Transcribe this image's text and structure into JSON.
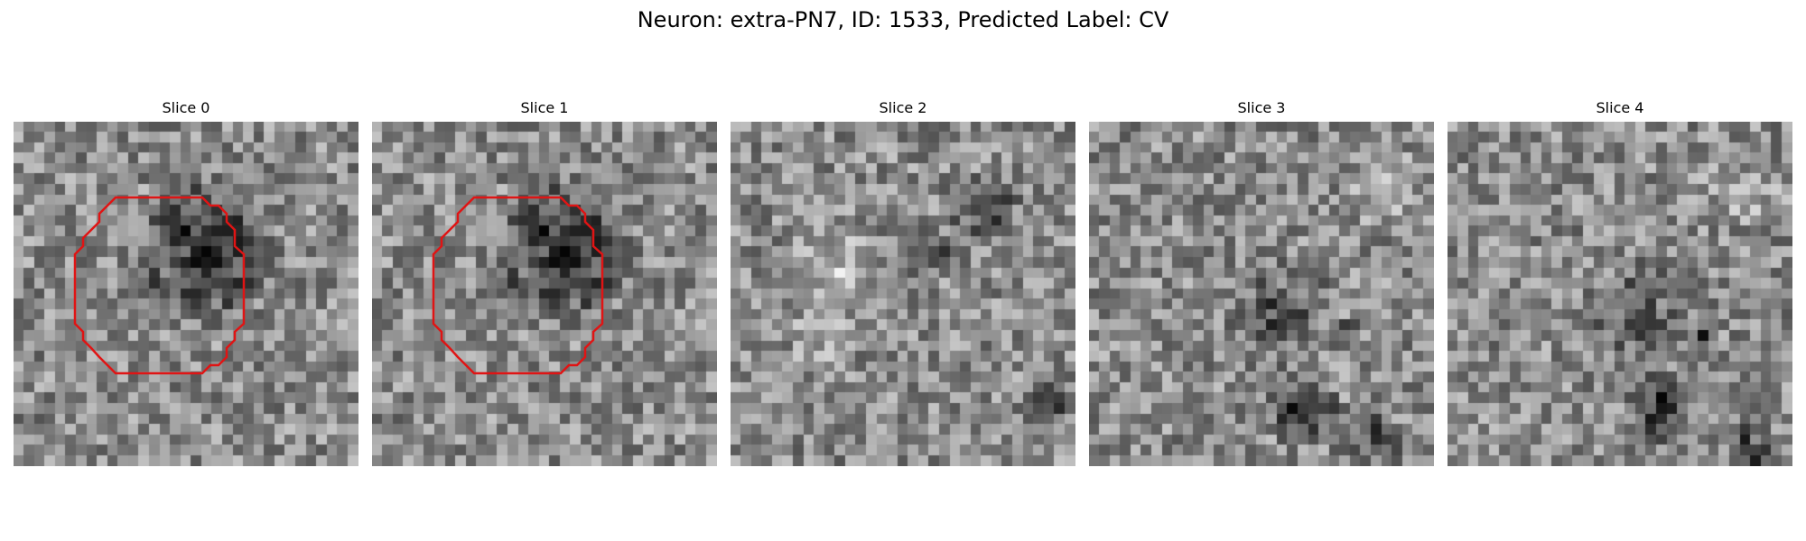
{
  "figure": {
    "title": "Neuron: extra-PN7, ID: 1533, Predicted Label: CV"
  },
  "colors": {
    "background": "#ffffff",
    "text": "#000000",
    "contour": "#e01414"
  },
  "panels": [
    {
      "title": "Slice 0",
      "colormap": "grayscale",
      "has_contour": true
    },
    {
      "title": "Slice 1",
      "colormap": "grayscale",
      "has_contour": true
    },
    {
      "title": "Slice 2",
      "colormap": "grayscale",
      "has_contour": false
    },
    {
      "title": "Slice 3",
      "colormap": "grayscale",
      "has_contour": false
    },
    {
      "title": "Slice 4",
      "colormap": "grayscale",
      "has_contour": false
    }
  ]
}
